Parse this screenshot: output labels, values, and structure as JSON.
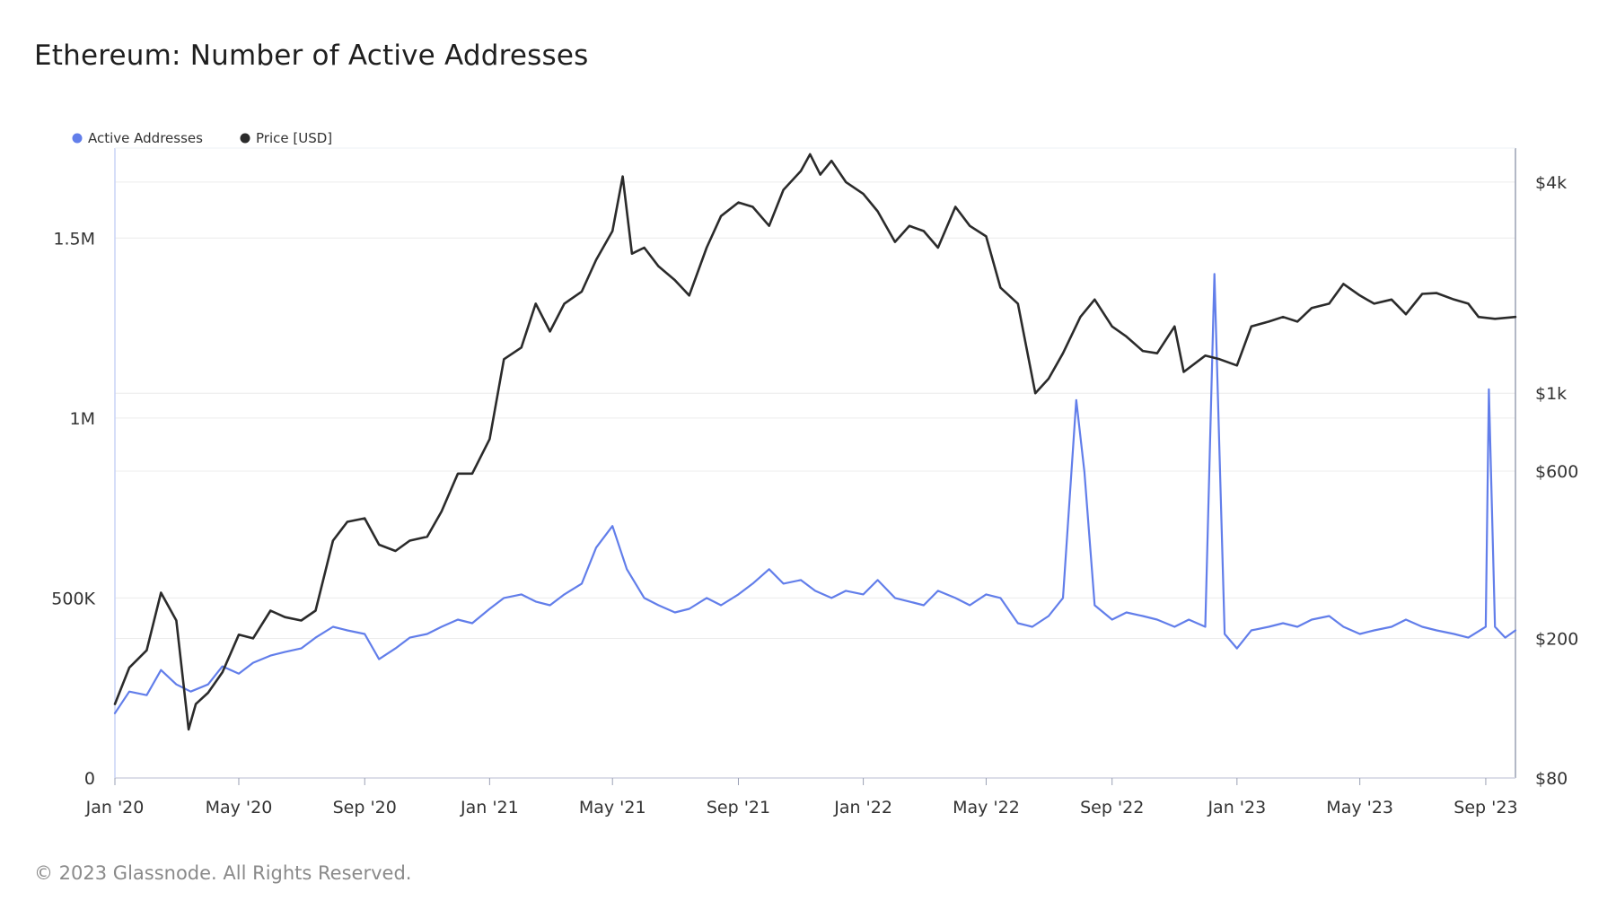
{
  "title": "Ethereum: Number of Active Addresses",
  "footer": "© 2023 Glassnode. All Rights Reserved.",
  "colors": {
    "active": "#627eea",
    "price": "#2b2b2b",
    "grid": "#ececec",
    "axis": "#c9d3f5"
  },
  "chart_data": {
    "type": "line",
    "legend_position": "top-left",
    "grid": true,
    "legend": [
      {
        "label": "Active Addresses",
        "color": "#627eea"
      },
      {
        "label": "Price [USD]",
        "color": "#2b2b2b"
      }
    ],
    "x_range": [
      "2020-01-01",
      "2023-09-30"
    ],
    "x_ticks": [
      {
        "date": "2020-01-01",
        "label": "Jan '20"
      },
      {
        "date": "2020-05-01",
        "label": "May '20"
      },
      {
        "date": "2020-09-01",
        "label": "Sep '20"
      },
      {
        "date": "2021-01-01",
        "label": "Jan '21"
      },
      {
        "date": "2021-05-01",
        "label": "May '21"
      },
      {
        "date": "2021-09-01",
        "label": "Sep '21"
      },
      {
        "date": "2022-01-01",
        "label": "Jan '22"
      },
      {
        "date": "2022-05-01",
        "label": "May '22"
      },
      {
        "date": "2022-09-01",
        "label": "Sep '22"
      },
      {
        "date": "2023-01-01",
        "label": "Jan '23"
      },
      {
        "date": "2023-05-01",
        "label": "May '23"
      },
      {
        "date": "2023-09-01",
        "label": "Sep '23"
      }
    ],
    "y_left": {
      "min": 0,
      "max": 1750000,
      "ticks": [
        {
          "value": 0,
          "label": "0"
        },
        {
          "value": 500000,
          "label": "500K"
        },
        {
          "value": 1000000,
          "label": "1M"
        },
        {
          "value": 1500000,
          "label": "1.5M"
        }
      ]
    },
    "y_right": {
      "scale": "log",
      "min": 80,
      "max": 5000,
      "ticks": [
        {
          "value": 80,
          "label": "$80"
        },
        {
          "value": 200,
          "label": "$200"
        },
        {
          "value": 600,
          "label": "$600"
        },
        {
          "value": 1000,
          "label": "$1k"
        },
        {
          "value": 4000,
          "label": "$4k"
        }
      ]
    },
    "series": [
      {
        "name": "Active Addresses",
        "axis": "left",
        "color": "#627eea",
        "points": [
          [
            "2020-01-01",
            180000
          ],
          [
            "2020-01-15",
            240000
          ],
          [
            "2020-02-01",
            230000
          ],
          [
            "2020-02-15",
            300000
          ],
          [
            "2020-03-01",
            260000
          ],
          [
            "2020-03-15",
            240000
          ],
          [
            "2020-04-01",
            260000
          ],
          [
            "2020-04-15",
            310000
          ],
          [
            "2020-05-01",
            290000
          ],
          [
            "2020-05-15",
            320000
          ],
          [
            "2020-06-01",
            340000
          ],
          [
            "2020-06-15",
            350000
          ],
          [
            "2020-07-01",
            360000
          ],
          [
            "2020-07-15",
            390000
          ],
          [
            "2020-08-01",
            420000
          ],
          [
            "2020-08-15",
            410000
          ],
          [
            "2020-09-01",
            400000
          ],
          [
            "2020-09-15",
            330000
          ],
          [
            "2020-10-01",
            360000
          ],
          [
            "2020-10-15",
            390000
          ],
          [
            "2020-11-01",
            400000
          ],
          [
            "2020-11-15",
            420000
          ],
          [
            "2020-12-01",
            440000
          ],
          [
            "2020-12-15",
            430000
          ],
          [
            "2021-01-01",
            470000
          ],
          [
            "2021-01-15",
            500000
          ],
          [
            "2021-02-01",
            510000
          ],
          [
            "2021-02-15",
            490000
          ],
          [
            "2021-03-01",
            480000
          ],
          [
            "2021-03-15",
            510000
          ],
          [
            "2021-04-01",
            540000
          ],
          [
            "2021-04-15",
            640000
          ],
          [
            "2021-05-01",
            700000
          ],
          [
            "2021-05-15",
            580000
          ],
          [
            "2021-06-01",
            500000
          ],
          [
            "2021-06-15",
            480000
          ],
          [
            "2021-07-01",
            460000
          ],
          [
            "2021-07-15",
            470000
          ],
          [
            "2021-08-01",
            500000
          ],
          [
            "2021-08-15",
            480000
          ],
          [
            "2021-09-01",
            510000
          ],
          [
            "2021-09-15",
            540000
          ],
          [
            "2021-10-01",
            580000
          ],
          [
            "2021-10-15",
            540000
          ],
          [
            "2021-11-01",
            550000
          ],
          [
            "2021-11-15",
            520000
          ],
          [
            "2021-12-01",
            500000
          ],
          [
            "2021-12-15",
            520000
          ],
          [
            "2022-01-01",
            510000
          ],
          [
            "2022-01-15",
            550000
          ],
          [
            "2022-02-01",
            500000
          ],
          [
            "2022-02-15",
            490000
          ],
          [
            "2022-03-01",
            480000
          ],
          [
            "2022-03-15",
            520000
          ],
          [
            "2022-04-01",
            500000
          ],
          [
            "2022-04-15",
            480000
          ],
          [
            "2022-05-01",
            510000
          ],
          [
            "2022-05-15",
            500000
          ],
          [
            "2022-06-01",
            430000
          ],
          [
            "2022-06-15",
            420000
          ],
          [
            "2022-07-01",
            450000
          ],
          [
            "2022-07-15",
            500000
          ],
          [
            "2022-07-28",
            1050000
          ],
          [
            "2022-08-05",
            850000
          ],
          [
            "2022-08-15",
            480000
          ],
          [
            "2022-09-01",
            440000
          ],
          [
            "2022-09-15",
            460000
          ],
          [
            "2022-10-01",
            450000
          ],
          [
            "2022-10-15",
            440000
          ],
          [
            "2022-11-01",
            420000
          ],
          [
            "2022-11-15",
            440000
          ],
          [
            "2022-12-01",
            420000
          ],
          [
            "2022-12-10",
            1400000
          ],
          [
            "2022-12-20",
            400000
          ],
          [
            "2023-01-01",
            360000
          ],
          [
            "2023-01-15",
            410000
          ],
          [
            "2023-02-01",
            420000
          ],
          [
            "2023-02-15",
            430000
          ],
          [
            "2023-03-01",
            420000
          ],
          [
            "2023-03-15",
            440000
          ],
          [
            "2023-04-01",
            450000
          ],
          [
            "2023-04-15",
            420000
          ],
          [
            "2023-05-01",
            400000
          ],
          [
            "2023-05-15",
            410000
          ],
          [
            "2023-06-01",
            420000
          ],
          [
            "2023-06-15",
            440000
          ],
          [
            "2023-07-01",
            420000
          ],
          [
            "2023-07-15",
            410000
          ],
          [
            "2023-08-01",
            400000
          ],
          [
            "2023-08-15",
            390000
          ],
          [
            "2023-09-01",
            420000
          ],
          [
            "2023-09-04",
            1080000
          ],
          [
            "2023-09-10",
            420000
          ],
          [
            "2023-09-20",
            390000
          ],
          [
            "2023-09-30",
            410000
          ]
        ]
      },
      {
        "name": "Price [USD]",
        "axis": "right",
        "color": "#2b2b2b",
        "points": [
          [
            "2020-01-01",
            130
          ],
          [
            "2020-01-15",
            165
          ],
          [
            "2020-02-01",
            185
          ],
          [
            "2020-02-15",
            270
          ],
          [
            "2020-03-01",
            225
          ],
          [
            "2020-03-13",
            110
          ],
          [
            "2020-03-20",
            130
          ],
          [
            "2020-04-01",
            140
          ],
          [
            "2020-04-15",
            160
          ],
          [
            "2020-05-01",
            205
          ],
          [
            "2020-05-15",
            200
          ],
          [
            "2020-06-01",
            240
          ],
          [
            "2020-06-15",
            230
          ],
          [
            "2020-07-01",
            225
          ],
          [
            "2020-07-15",
            240
          ],
          [
            "2020-08-01",
            380
          ],
          [
            "2020-08-15",
            430
          ],
          [
            "2020-09-01",
            440
          ],
          [
            "2020-09-15",
            370
          ],
          [
            "2020-10-01",
            355
          ],
          [
            "2020-10-15",
            380
          ],
          [
            "2020-11-01",
            390
          ],
          [
            "2020-11-15",
            460
          ],
          [
            "2020-12-01",
            590
          ],
          [
            "2020-12-15",
            590
          ],
          [
            "2021-01-01",
            740
          ],
          [
            "2021-01-15",
            1250
          ],
          [
            "2021-02-01",
            1350
          ],
          [
            "2021-02-15",
            1800
          ],
          [
            "2021-03-01",
            1500
          ],
          [
            "2021-03-15",
            1800
          ],
          [
            "2021-04-01",
            1950
          ],
          [
            "2021-04-15",
            2400
          ],
          [
            "2021-05-01",
            2900
          ],
          [
            "2021-05-11",
            4150
          ],
          [
            "2021-05-20",
            2500
          ],
          [
            "2021-06-01",
            2600
          ],
          [
            "2021-06-15",
            2300
          ],
          [
            "2021-07-01",
            2100
          ],
          [
            "2021-07-15",
            1900
          ],
          [
            "2021-08-01",
            2600
          ],
          [
            "2021-08-15",
            3200
          ],
          [
            "2021-09-01",
            3500
          ],
          [
            "2021-09-15",
            3400
          ],
          [
            "2021-10-01",
            3000
          ],
          [
            "2021-10-15",
            3800
          ],
          [
            "2021-11-01",
            4300
          ],
          [
            "2021-11-10",
            4800
          ],
          [
            "2021-11-20",
            4200
          ],
          [
            "2021-12-01",
            4600
          ],
          [
            "2021-12-15",
            4000
          ],
          [
            "2022-01-01",
            3700
          ],
          [
            "2022-01-15",
            3300
          ],
          [
            "2022-02-01",
            2700
          ],
          [
            "2022-02-15",
            3000
          ],
          [
            "2022-03-01",
            2900
          ],
          [
            "2022-03-15",
            2600
          ],
          [
            "2022-04-01",
            3400
          ],
          [
            "2022-04-15",
            3000
          ],
          [
            "2022-05-01",
            2800
          ],
          [
            "2022-05-15",
            2000
          ],
          [
            "2022-06-01",
            1800
          ],
          [
            "2022-06-18",
            1000
          ],
          [
            "2022-07-01",
            1100
          ],
          [
            "2022-07-15",
            1300
          ],
          [
            "2022-08-01",
            1650
          ],
          [
            "2022-08-15",
            1850
          ],
          [
            "2022-09-01",
            1550
          ],
          [
            "2022-09-15",
            1450
          ],
          [
            "2022-10-01",
            1320
          ],
          [
            "2022-10-15",
            1300
          ],
          [
            "2022-11-01",
            1550
          ],
          [
            "2022-11-10",
            1150
          ],
          [
            "2022-12-01",
            1280
          ],
          [
            "2022-12-15",
            1250
          ],
          [
            "2023-01-01",
            1200
          ],
          [
            "2023-01-15",
            1550
          ],
          [
            "2023-02-01",
            1600
          ],
          [
            "2023-02-15",
            1650
          ],
          [
            "2023-03-01",
            1600
          ],
          [
            "2023-03-15",
            1750
          ],
          [
            "2023-04-01",
            1800
          ],
          [
            "2023-04-15",
            2050
          ],
          [
            "2023-05-01",
            1900
          ],
          [
            "2023-05-15",
            1800
          ],
          [
            "2023-06-01",
            1850
          ],
          [
            "2023-06-15",
            1680
          ],
          [
            "2023-07-01",
            1920
          ],
          [
            "2023-07-15",
            1930
          ],
          [
            "2023-08-01",
            1850
          ],
          [
            "2023-08-15",
            1800
          ],
          [
            "2023-08-25",
            1650
          ],
          [
            "2023-09-10",
            1630
          ],
          [
            "2023-09-30",
            1650
          ]
        ]
      }
    ]
  }
}
